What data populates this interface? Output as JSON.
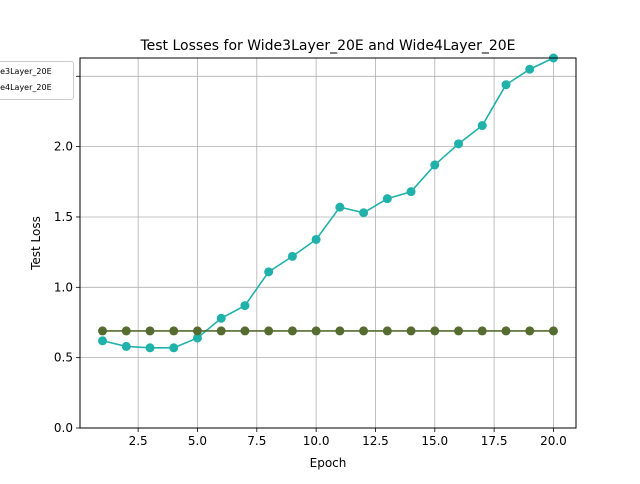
{
  "chart_data": {
    "type": "line",
    "title": "Test Losses for Wide3Layer_20E and Wide4Layer_20E",
    "xlabel": "Epoch",
    "ylabel": "Test Loss",
    "xlim": [
      0.05,
      20.95
    ],
    "ylim": [
      0.0,
      2.63
    ],
    "xticks": [
      2.5,
      5.0,
      7.5,
      10.0,
      12.5,
      15.0,
      17.5,
      20.0
    ],
    "xtick_labels": [
      "2.5",
      "5.0",
      "7.5",
      "10.0",
      "12.5",
      "15.0",
      "17.5",
      "20.0"
    ],
    "yticks": [
      0.0,
      0.5,
      1.0,
      1.5,
      2.0,
      2.5
    ],
    "ytick_labels": [
      "0.0",
      "0.5",
      "1.0",
      "1.5",
      "2.0",
      ""
    ],
    "grid": true,
    "legend_position": "upper-left",
    "x": [
      1,
      2,
      3,
      4,
      5,
      6,
      7,
      8,
      9,
      10,
      11,
      12,
      13,
      14,
      15,
      16,
      17,
      18,
      19,
      20
    ],
    "series": [
      {
        "name": "Wide3Layer_20E",
        "legend_text": "de3Layer_20E",
        "color": "#20b2aa",
        "values": [
          0.62,
          0.58,
          0.57,
          0.57,
          0.64,
          0.78,
          0.87,
          1.11,
          1.22,
          1.34,
          1.57,
          1.53,
          1.63,
          1.68,
          1.87,
          2.02,
          2.15,
          2.44,
          2.55,
          2.63
        ]
      },
      {
        "name": "Wide4Layer_20E",
        "legend_text": "de4Layer_20E",
        "color": "#556b2f",
        "values": [
          0.69,
          0.69,
          0.69,
          0.69,
          0.69,
          0.69,
          0.69,
          0.69,
          0.69,
          0.69,
          0.69,
          0.69,
          0.69,
          0.69,
          0.69,
          0.69,
          0.69,
          0.69,
          0.69,
          0.69
        ]
      }
    ]
  }
}
